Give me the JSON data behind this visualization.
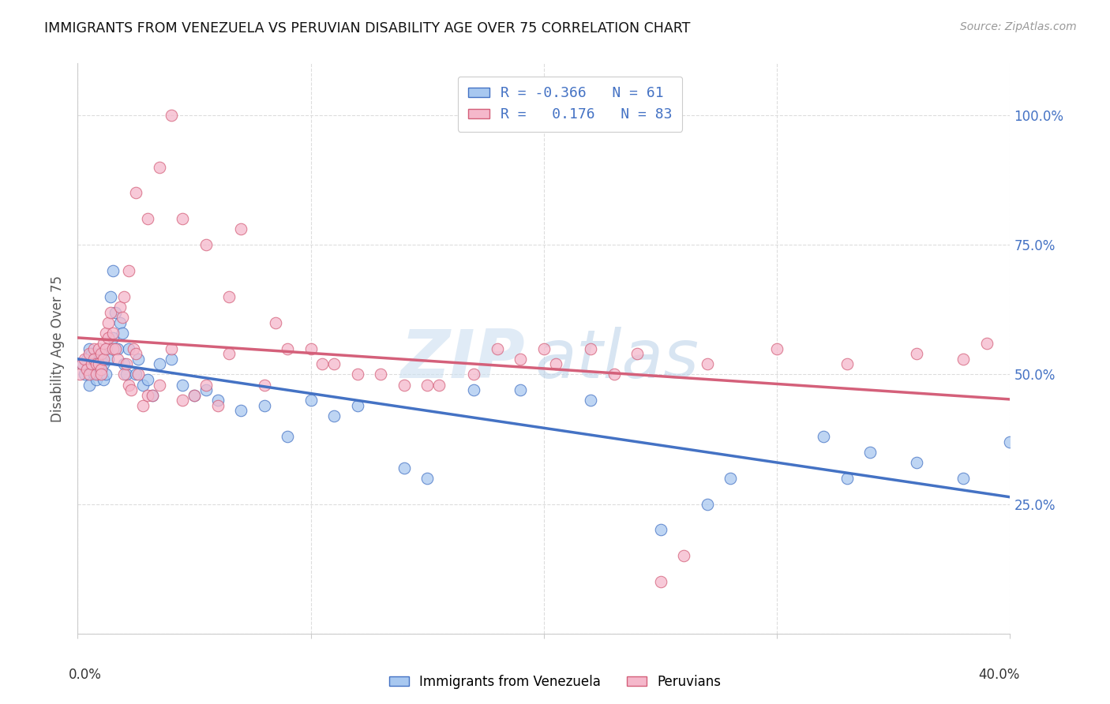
{
  "title": "IMMIGRANTS FROM VENEZUELA VS PERUVIAN DISABILITY AGE OVER 75 CORRELATION CHART",
  "source": "Source: ZipAtlas.com",
  "ylabel": "Disability Age Over 75",
  "legend_label1": "Immigrants from Venezuela",
  "legend_label2": "Peruvians",
  "R1": -0.366,
  "N1": 61,
  "R2": 0.176,
  "N2": 83,
  "color_blue": "#a8c8f0",
  "color_pink": "#f5b8cb",
  "color_blue_line": "#4472c4",
  "color_pink_line": "#d4607a",
  "color_blue_text": "#4472c4",
  "xlim": [
    0,
    40
  ],
  "ylim": [
    0,
    110
  ],
  "blue_x": [
    0.2,
    0.3,
    0.4,
    0.5,
    0.5,
    0.6,
    0.6,
    0.7,
    0.7,
    0.8,
    0.8,
    0.9,
    0.9,
    1.0,
    1.0,
    1.1,
    1.1,
    1.2,
    1.2,
    1.3,
    1.4,
    1.5,
    1.5,
    1.6,
    1.7,
    1.8,
    1.9,
    2.0,
    2.1,
    2.2,
    2.5,
    2.6,
    2.8,
    3.0,
    3.2,
    3.5,
    4.0,
    4.5,
    5.0,
    5.5,
    6.0,
    7.0,
    8.0,
    9.0,
    10.0,
    11.0,
    12.0,
    14.0,
    15.0,
    17.0,
    19.0,
    22.0,
    25.0,
    28.0,
    32.0,
    34.0,
    36.0,
    38.0,
    40.0,
    33.0,
    27.0
  ],
  "blue_y": [
    52,
    50,
    53,
    48,
    55,
    51,
    54,
    50,
    53,
    49,
    52,
    54,
    50,
    51,
    53,
    49,
    52,
    55,
    50,
    53,
    65,
    70,
    57,
    62,
    55,
    60,
    58,
    52,
    50,
    55,
    50,
    53,
    48,
    49,
    46,
    52,
    53,
    48,
    46,
    47,
    45,
    43,
    44,
    38,
    45,
    42,
    44,
    32,
    30,
    47,
    47,
    45,
    20,
    30,
    38,
    35,
    33,
    30,
    37,
    30,
    25
  ],
  "pink_x": [
    0.1,
    0.2,
    0.3,
    0.4,
    0.5,
    0.5,
    0.6,
    0.7,
    0.7,
    0.8,
    0.8,
    0.9,
    0.9,
    1.0,
    1.0,
    1.0,
    1.1,
    1.1,
    1.2,
    1.2,
    1.3,
    1.3,
    1.4,
    1.5,
    1.5,
    1.6,
    1.7,
    1.8,
    1.9,
    2.0,
    2.1,
    2.2,
    2.3,
    2.4,
    2.5,
    2.6,
    2.8,
    3.0,
    3.2,
    3.5,
    4.0,
    4.5,
    5.0,
    5.5,
    6.0,
    6.5,
    7.0,
    8.0,
    9.0,
    10.0,
    11.0,
    12.0,
    14.0,
    15.0,
    17.0,
    19.0,
    20.0,
    22.0,
    24.0,
    25.0,
    27.0,
    30.0,
    33.0,
    36.0,
    38.0,
    39.0,
    2.5,
    3.0,
    3.5,
    4.0,
    2.0,
    2.2,
    4.5,
    5.5,
    6.5,
    8.5,
    10.5,
    13.0,
    15.5,
    18.0,
    20.5,
    23.0,
    26.0
  ],
  "pink_y": [
    50,
    52,
    53,
    51,
    54,
    50,
    52,
    55,
    53,
    50,
    52,
    55,
    52,
    54,
    51,
    50,
    56,
    53,
    58,
    55,
    60,
    57,
    62,
    58,
    55,
    55,
    53,
    63,
    61,
    50,
    52,
    48,
    47,
    55,
    54,
    50,
    44,
    46,
    46,
    48,
    55,
    45,
    46,
    48,
    44,
    54,
    78,
    48,
    55,
    55,
    52,
    50,
    48,
    48,
    50,
    53,
    55,
    55,
    54,
    10,
    52,
    55,
    52,
    54,
    53,
    56,
    85,
    80,
    90,
    100,
    65,
    70,
    80,
    75,
    65,
    60,
    52,
    50,
    48,
    55,
    52,
    50,
    15
  ]
}
